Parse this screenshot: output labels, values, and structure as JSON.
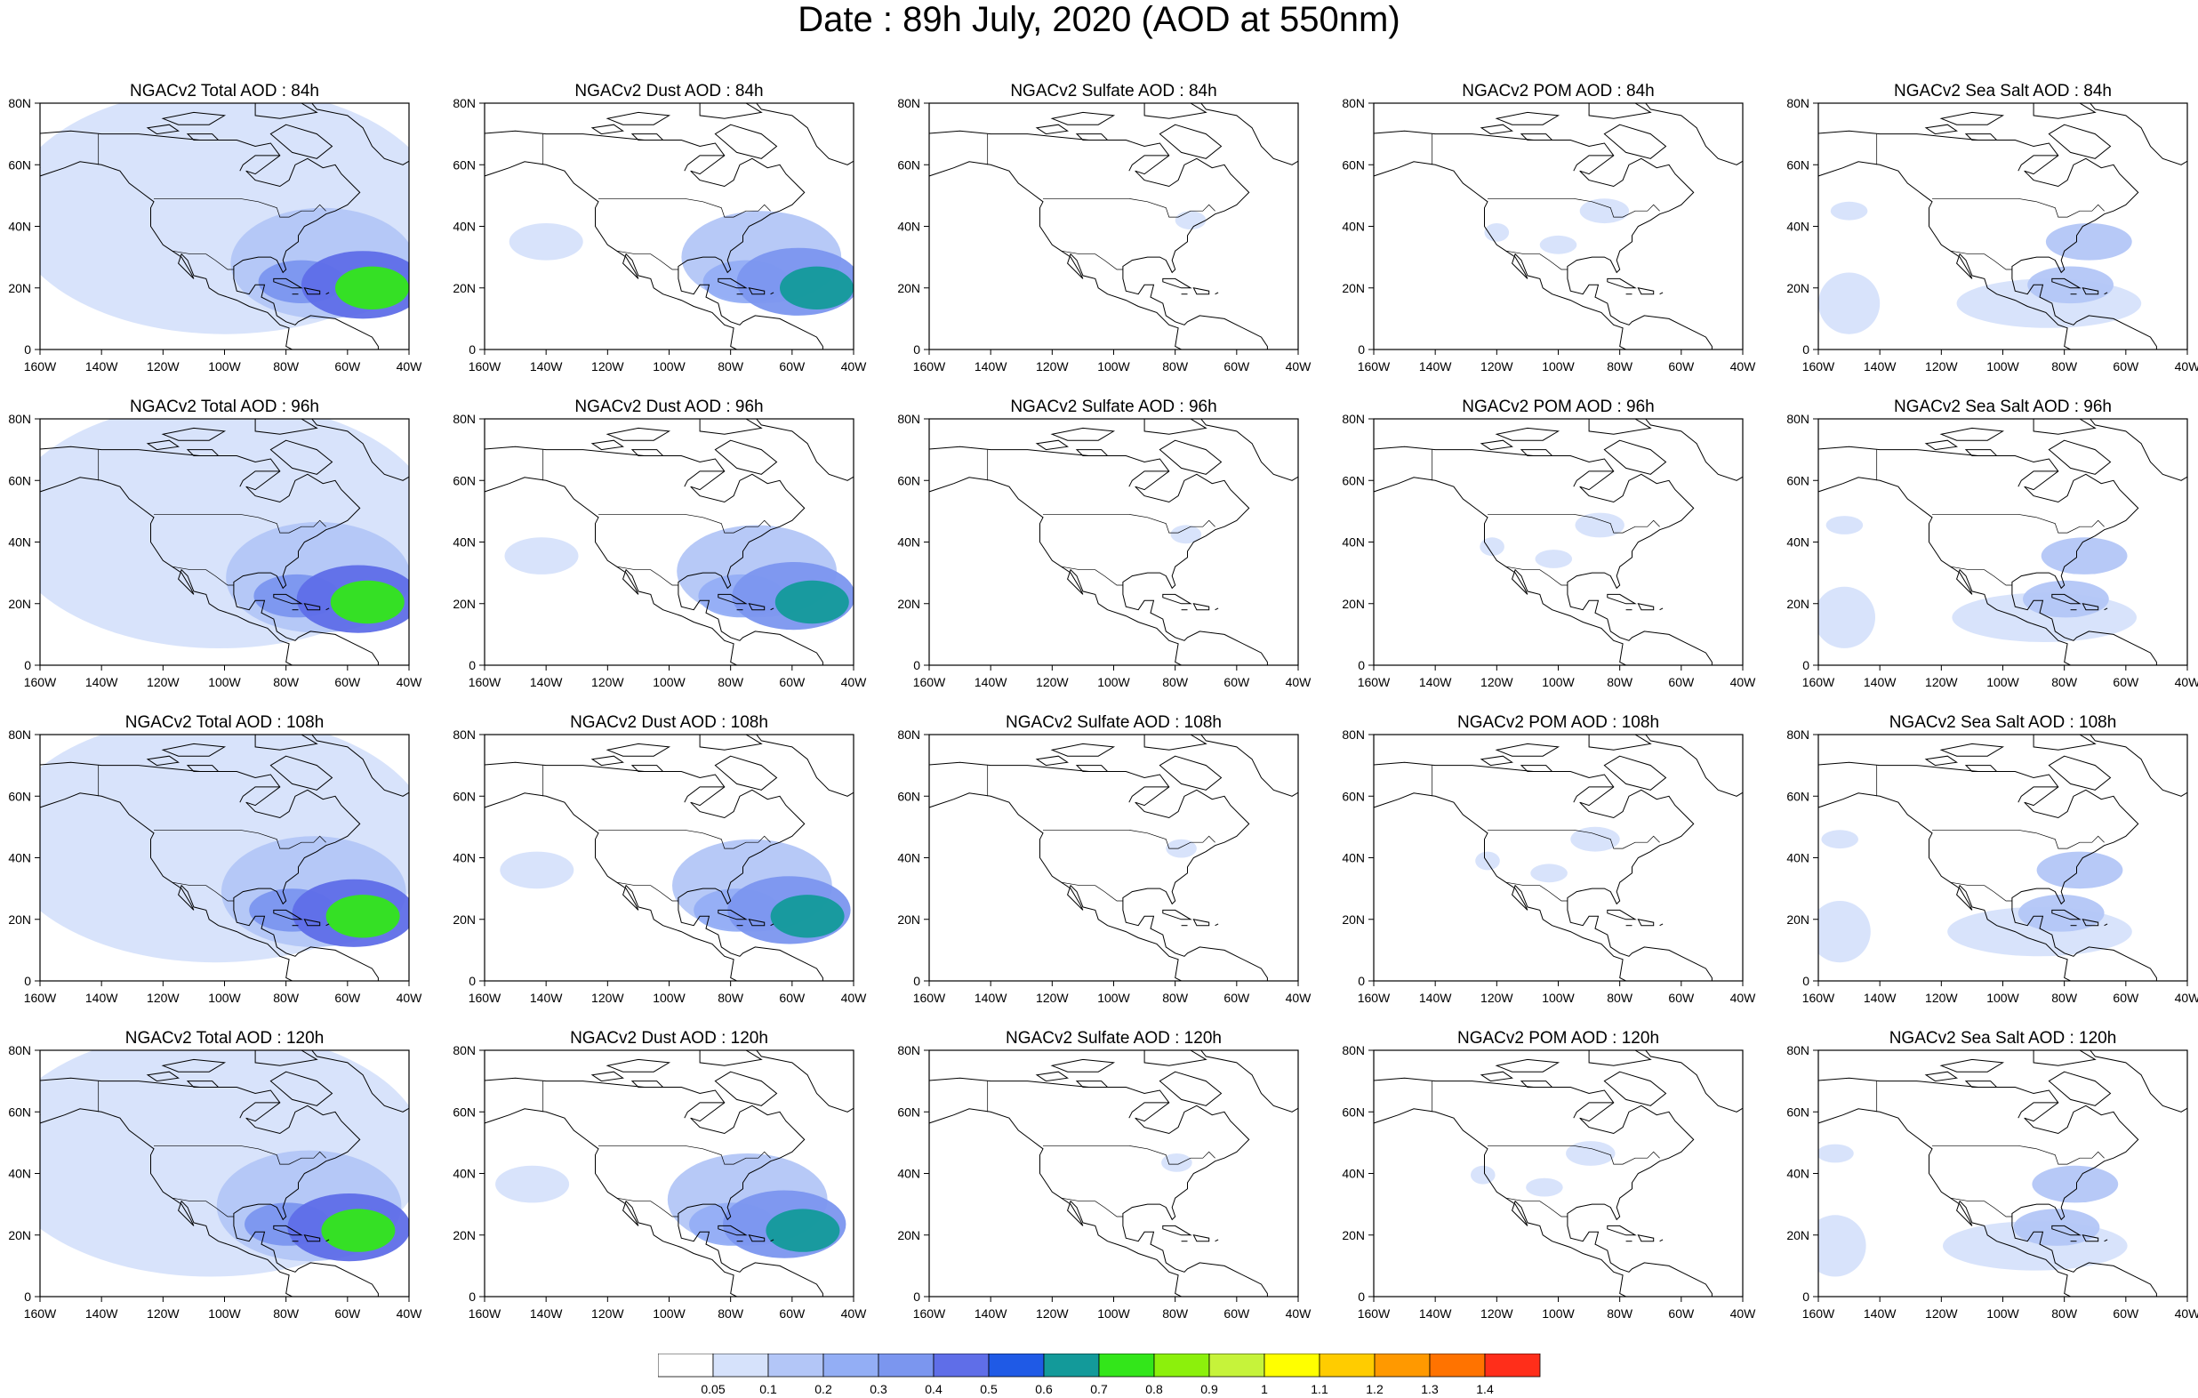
{
  "title": "Date : 89h July, 2020 (AOD at 550nm)",
  "panels": [
    [
      "NGACv2 Total AOD : 84h",
      "NGACv2 Dust AOD : 84h",
      "NGACv2 Sulfate AOD : 84h",
      "NGACv2 POM AOD : 84h",
      "NGACv2 Sea Salt AOD : 84h"
    ],
    [
      "NGACv2 Total AOD : 96h",
      "NGACv2 Dust AOD : 96h",
      "NGACv2 Sulfate AOD : 96h",
      "NGACv2 POM AOD : 96h",
      "NGACv2 Sea Salt AOD : 96h"
    ],
    [
      "NGACv2 Total AOD : 108h",
      "NGACv2 Dust AOD : 108h",
      "NGACv2 Sulfate AOD : 108h",
      "NGACv2 POM AOD : 108h",
      "NGACv2 Sea Salt AOD : 108h"
    ],
    [
      "NGACv2 Total AOD : 120h",
      "NGACv2 Dust AOD : 120h",
      "NGACv2 Sulfate AOD : 120h",
      "NGACv2 POM AOD : 120h",
      "NGACv2 Sea Salt  AOD : 120h"
    ]
  ],
  "map_axes": {
    "x_ticks": [
      "160W",
      "140W",
      "120W",
      "100W",
      "80W",
      "60W",
      "40W"
    ],
    "y_ticks": [
      "80N",
      "60N",
      "40N",
      "20N",
      "0"
    ],
    "lon_range": [
      -160,
      -40
    ],
    "lat_range": [
      0,
      80
    ]
  },
  "colorbar": {
    "labels": [
      "0.05",
      "0.1",
      "0.2",
      "0.3",
      "0.4",
      "0.5",
      "0.6",
      "0.7",
      "0.8",
      "0.9",
      "1",
      "1.1",
      "1.2",
      "1.3",
      "1.4"
    ],
    "colors": [
      "#ffffff",
      "#d6e2fb",
      "#b3c6f7",
      "#93aef5",
      "#7b96ef",
      "#5f6ee8",
      "#1f5ae6",
      "#139a9a",
      "#33e61a",
      "#8cf00c",
      "#c6f33a",
      "#ffff00",
      "#ffcc00",
      "#ff9900",
      "#ff7300",
      "#ff2e1a"
    ]
  },
  "plumes": {
    "total": [
      {
        "lon": -52,
        "lat": 20,
        "rx": 12,
        "ry": 7,
        "level": 8
      },
      {
        "lon": -55,
        "lat": 21,
        "rx": 20,
        "ry": 11,
        "level": 5
      },
      {
        "lon": -75,
        "lat": 22,
        "rx": 14,
        "ry": 7,
        "level": 4
      },
      {
        "lon": -68,
        "lat": 28,
        "rx": 30,
        "ry": 18,
        "level": 2
      },
      {
        "lon": -100,
        "lat": 45,
        "rx": 70,
        "ry": 40,
        "level": 1
      }
    ],
    "dust": [
      {
        "lon": -52,
        "lat": 20,
        "rx": 12,
        "ry": 7,
        "level": 7
      },
      {
        "lon": -58,
        "lat": 22,
        "rx": 20,
        "ry": 11,
        "level": 4
      },
      {
        "lon": -75,
        "lat": 22,
        "rx": 14,
        "ry": 7,
        "level": 3
      },
      {
        "lon": -70,
        "lat": 30,
        "rx": 26,
        "ry": 15,
        "level": 2
      },
      {
        "lon": -140,
        "lat": 35,
        "rx": 12,
        "ry": 6,
        "level": 1
      }
    ],
    "sulfate": [
      {
        "lon": -75,
        "lat": 42,
        "rx": 5,
        "ry": 3,
        "level": 1
      }
    ],
    "pom": [
      {
        "lon": -120,
        "lat": 38,
        "rx": 4,
        "ry": 3,
        "level": 1
      },
      {
        "lon": -85,
        "lat": 45,
        "rx": 8,
        "ry": 4,
        "level": 1
      },
      {
        "lon": -100,
        "lat": 34,
        "rx": 6,
        "ry": 3,
        "level": 1
      }
    ],
    "seasalt": [
      {
        "lon": -72,
        "lat": 35,
        "rx": 14,
        "ry": 6,
        "level": 2
      },
      {
        "lon": -78,
        "lat": 21,
        "rx": 14,
        "ry": 6,
        "level": 2
      },
      {
        "lon": -150,
        "lat": 15,
        "rx": 10,
        "ry": 10,
        "level": 1
      },
      {
        "lon": -150,
        "lat": 45,
        "rx": 6,
        "ry": 3,
        "level": 1
      },
      {
        "lon": -85,
        "lat": 15,
        "rx": 30,
        "ry": 8,
        "level": 1
      }
    ]
  }
}
